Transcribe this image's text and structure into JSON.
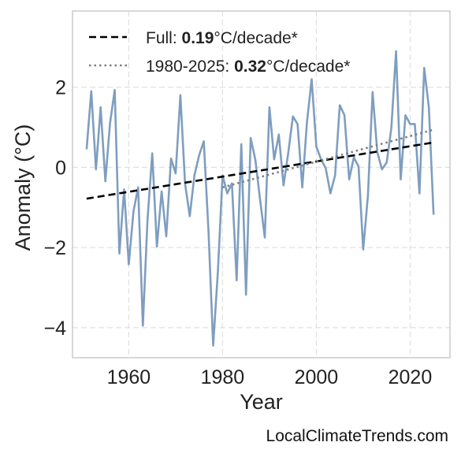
{
  "chart_data": {
    "type": "line",
    "xlabel": "Year",
    "ylabel": "Anomaly (°C)",
    "xlim": [
      1948,
      2028.5
    ],
    "ylim": [
      -4.75,
      3.9
    ],
    "xticks": [
      1960,
      1980,
      2000,
      2020
    ],
    "yticks": [
      -4,
      -2,
      0,
      2
    ],
    "ytick_labels": [
      "−4",
      "−2",
      "0",
      "2"
    ],
    "grid": true,
    "legend_position": "top-left",
    "series": [
      {
        "style": "solid",
        "color": "#7f9ebf",
        "x": [
          1951,
          1952,
          1953,
          1954,
          1955,
          1956,
          1957,
          1958,
          1959,
          1960,
          1961,
          1962,
          1963,
          1964,
          1965,
          1966,
          1967,
          1968,
          1969,
          1970,
          1971,
          1972,
          1973,
          1974,
          1975,
          1976,
          1977,
          1978,
          1979,
          1980,
          1981,
          1982,
          1983,
          1984,
          1985,
          1986,
          1987,
          1988,
          1989,
          1990,
          1991,
          1992,
          1993,
          1994,
          1995,
          1996,
          1997,
          1998,
          1999,
          2000,
          2001,
          2002,
          2003,
          2004,
          2005,
          2006,
          2007,
          2008,
          2009,
          2010,
          2011,
          2012,
          2013,
          2014,
          2015,
          2016,
          2017,
          2018,
          2019,
          2020,
          2021,
          2022,
          2023,
          2024,
          2025
        ],
        "y": [
          0.45,
          1.9,
          -0.05,
          1.5,
          -0.35,
          1.1,
          1.93,
          -2.15,
          -0.55,
          -2.42,
          -1.1,
          -0.5,
          -3.95,
          -1.3,
          0.35,
          -1.98,
          -0.6,
          -1.72,
          0.22,
          -0.15,
          1.8,
          -0.4,
          -1.22,
          -0.2,
          0.3,
          0.65,
          -1.6,
          -4.45,
          -2.6,
          -0.2,
          -0.65,
          -0.4,
          -2.82,
          0.58,
          -3.18,
          0.73,
          0.18,
          -0.8,
          -1.75,
          1.5,
          0.2,
          0.82,
          -0.45,
          0.35,
          1.27,
          1.08,
          -0.5,
          1.12,
          2.2,
          0.52,
          0.2,
          -0.02,
          -0.65,
          -0.2,
          1.55,
          1.3,
          -0.3,
          0.25,
          0.02,
          -2.05,
          -0.7,
          1.88,
          0.38,
          -0.05,
          0.12,
          0.98,
          2.9,
          -0.3,
          1.3,
          1.08,
          1.08,
          -0.65,
          2.48,
          1.5,
          -1.18
        ]
      },
      {
        "name": "Full",
        "style": "dashed",
        "color": "#000000",
        "x": [
          1951,
          2025
        ],
        "y": [
          -0.78,
          0.62
        ]
      },
      {
        "name": "1980-2025",
        "style": "dotted",
        "color": "#808080",
        "x": [
          1980,
          2025
        ],
        "y": [
          -0.5,
          0.94
        ]
      }
    ],
    "legend": [
      {
        "prefix": "Full: ",
        "value": "0.19",
        "suffix": "°C/decade*",
        "style": "dashed",
        "color": "#000000"
      },
      {
        "prefix": "1980-2025: ",
        "value": "0.32",
        "suffix": "°C/decade*",
        "style": "dotted",
        "color": "#808080"
      }
    ]
  },
  "watermark": "LocalClimateTrends.com"
}
